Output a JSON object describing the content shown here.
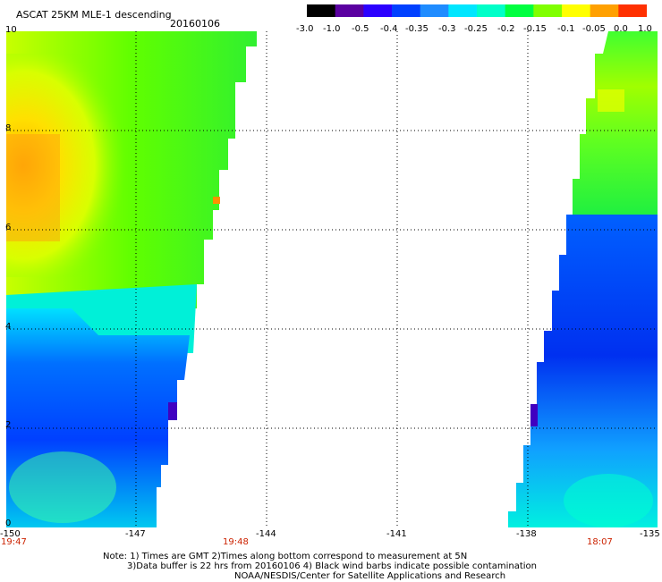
{
  "title": "ASCAT 25KM MLE-1 descending",
  "date": "20160106",
  "colorbar": {
    "ticks": [
      "-3.0",
      "-1.0",
      "-0.5",
      "-0.4",
      "-0.35",
      "-0.3",
      "-0.25",
      "-0.2",
      "-0.15",
      "-0.1",
      "-0.05",
      "0.0",
      "1.0"
    ],
    "colors": [
      "#000000",
      "#5a00a0",
      "#2b00ff",
      "#0040ff",
      "#1f8cff",
      "#00e6ff",
      "#00ffc8",
      "#00ff40",
      "#80ff00",
      "#ffff00",
      "#ffa000",
      "#ff3000"
    ]
  },
  "axes": {
    "x_ticks": [
      "-150",
      "-147",
      "-144",
      "-141",
      "-138",
      "-135"
    ],
    "y_ticks": [
      "0",
      "2",
      "4",
      "6",
      "8",
      "10"
    ]
  },
  "times": [
    {
      "label": "19:47"
    },
    {
      "label": "19:48"
    },
    {
      "label": "18:07"
    }
  ],
  "notes": [
    "Note: 1) Times are GMT 2)Times along bottom correspond to measurement at 5N",
    "3)Data buffer is 22 hrs from 20160106 4) Black wind barbs indicate possible contamination",
    "NOAA/NESDIS/Center for Satellite Applications and Research"
  ]
}
